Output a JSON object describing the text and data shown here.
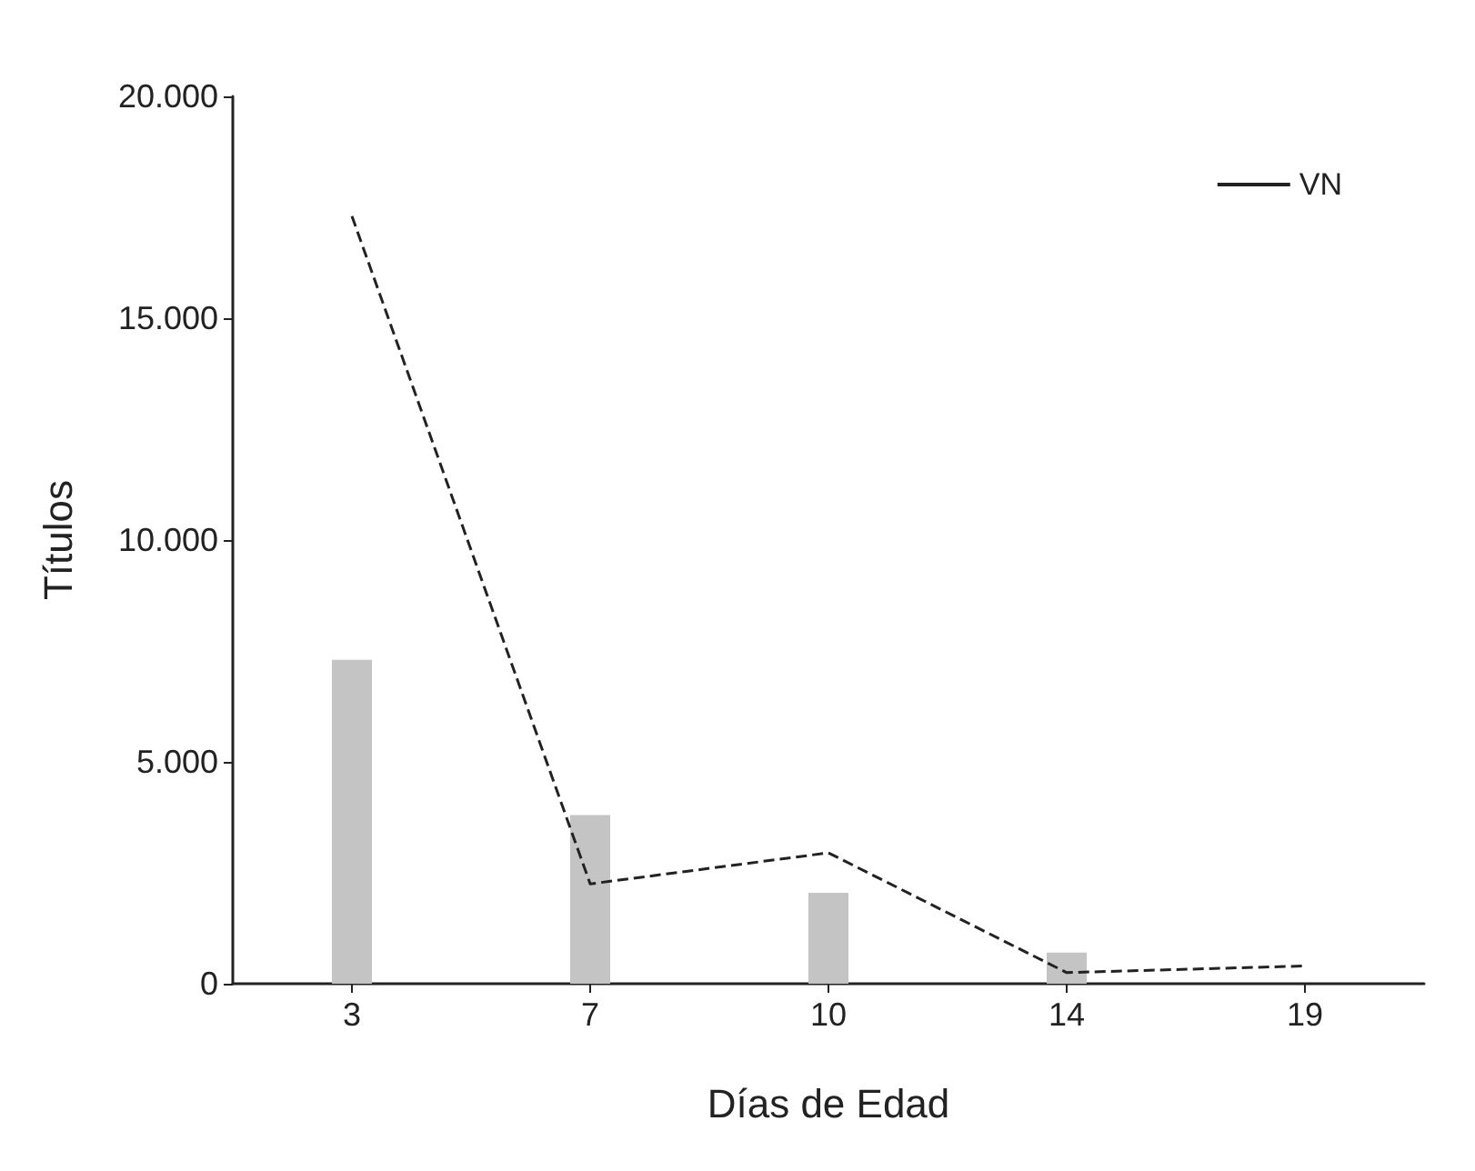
{
  "chart_data": {
    "type": "bar",
    "xlabel": "Días de Edad",
    "ylabel": "Títulos",
    "categories": [
      "3",
      "7",
      "10",
      "14",
      "19"
    ],
    "series": [
      {
        "color": "#c4c4c4",
        "values": [
          7300,
          3800,
          2050,
          700,
          null
        ]
      },
      {
        "type": "line",
        "name": "VN",
        "color": "#222222",
        "values": [
          17300,
          2250,
          2950,
          250,
          400
        ],
        "line_style": "dashed"
      }
    ],
    "ylim": [
      0,
      20000
    ],
    "yticks": [
      {
        "value": 0,
        "label": "0"
      },
      {
        "value": 5000,
        "label": "5.000"
      },
      {
        "value": 10000,
        "label": "10.000"
      },
      {
        "value": 15000,
        "label": "15.000"
      },
      {
        "value": 20000,
        "label": "20.000"
      }
    ],
    "grid": false,
    "legend": "top right",
    "marker": "none"
  }
}
